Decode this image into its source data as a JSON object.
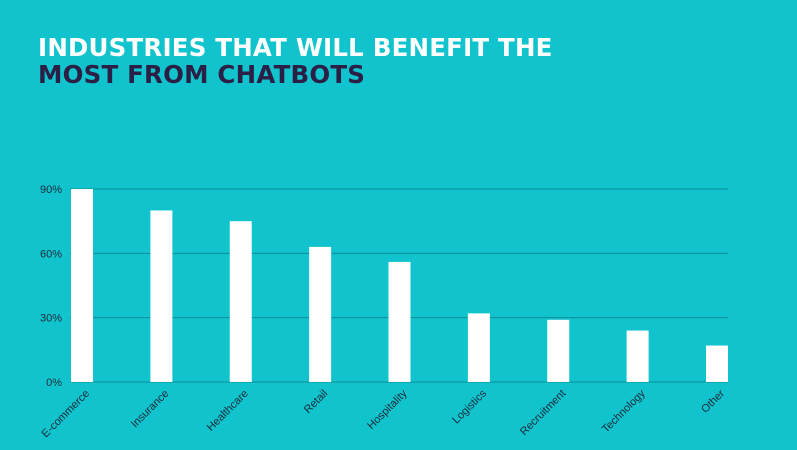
{
  "title": {
    "line1": "INDUSTRIES THAT WILL BENEFIT THE",
    "line2": "MOST FROM CHATBOTS"
  },
  "colors": {
    "background": "#10c3cc",
    "bar": "#ffffff",
    "title_primary": "#ffffff",
    "title_secondary": "#2b1f45",
    "gridline": "#0a8f96",
    "tick_text": "#1e2a3a"
  },
  "chart_data": {
    "type": "bar",
    "categories": [
      "E-commerce",
      "Insurance",
      "Healthcare",
      "Retail",
      "Hospitality",
      "Logistics",
      "Recruitment",
      "Technology",
      "Other"
    ],
    "values": [
      90,
      80,
      75,
      63,
      56,
      32,
      29,
      24,
      17
    ],
    "unit": "%",
    "ylim": [
      0,
      90
    ],
    "yticks": [
      0,
      30,
      60,
      90
    ],
    "ytick_labels": [
      "0%",
      "30%",
      "60%",
      "90%"
    ],
    "grid": true,
    "legend": false
  }
}
